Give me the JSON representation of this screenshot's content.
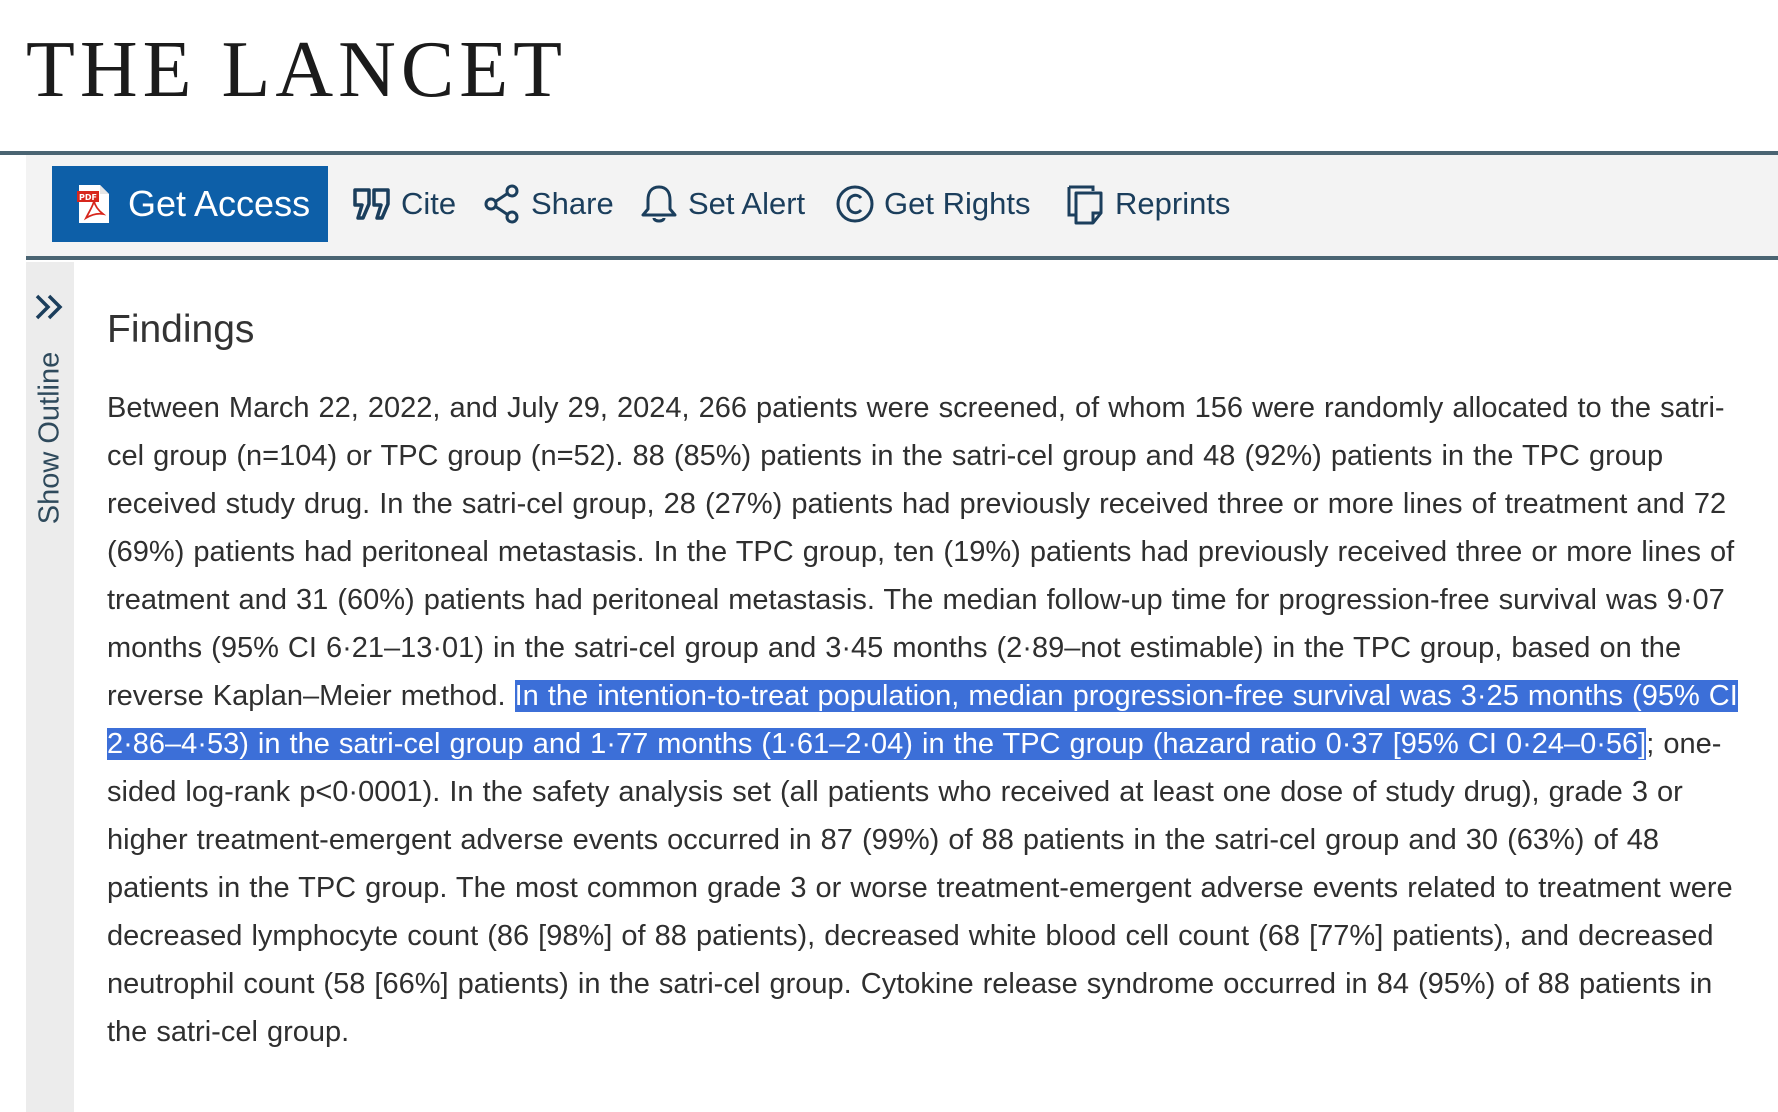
{
  "masthead": {
    "logo_text": "THE LANCET"
  },
  "toolbar": {
    "get_access_label": "Get Access",
    "items": [
      {
        "label": "Cite",
        "icon": "quote-icon"
      },
      {
        "label": "Share",
        "icon": "share-icon"
      },
      {
        "label": "Set Alert",
        "icon": "bell-icon"
      },
      {
        "label": "Get Rights",
        "icon": "copyright-icon"
      },
      {
        "label": "Reprints",
        "icon": "reprints-icon"
      }
    ]
  },
  "sidebar": {
    "label": "Show Outline",
    "icon": "double-chevron-right-icon"
  },
  "article": {
    "section_title": "Findings",
    "text_before": "Between March 22, 2022, and July 29, 2024, 266 patients were screened, of whom 156 were randomly allocated to the satri-cel group (n=104) or TPC group (n=52). 88 (85%) patients in the satri-cel group and 48 (92%) patients in the TPC group received study drug. In the satri-cel group, 28 (27%) patients had previously received three or more lines of treatment and 72 (69%) patients had peritoneal metastasis. In the TPC group, ten (19%) patients had previously received three or more lines of treatment and 31 (60%) patients had peritoneal metastasis. The median follow-up time for progression-free survival was 9·07 months (95% CI 6·21–13·01) in the satri-cel group and 3·45 months (2·89–not estimable) in the TPC group, based on the reverse Kaplan–Meier method. ",
    "text_highlighted": "In the intention-to-treat population, median progression-free survival was 3·25 months (95% CI 2·86–4·53) in the satri-cel group and 1·77 months (1·61–2·04) in the TPC group (hazard ratio 0·37 [95% CI 0·24–0·56]",
    "text_after": "; one-sided log-rank p<0·0001). In the safety analysis set (all patients who received at least one dose of study drug), grade 3 or higher treatment-emergent adverse events occurred in 87 (99%) of 88 patients in the satri-cel group and 30 (63%) of 48 patients in the TPC group. The most common grade 3 or worse treatment-emergent adverse events related to treatment were decreased lymphocyte count (86 [98%] of 88 patients), decreased white blood cell count (68 [77%] patients), and decreased neutrophil count (58 [66%] patients) in the satri-cel group. Cytokine release syndrome occurred in 84 (95%) of 88 patients in the satri-cel group."
  },
  "colors": {
    "brand_blue": "#0d5fa8",
    "link_navy": "#1b3e5c",
    "selection": "#3c6fd8",
    "rule": "#4a6472"
  }
}
